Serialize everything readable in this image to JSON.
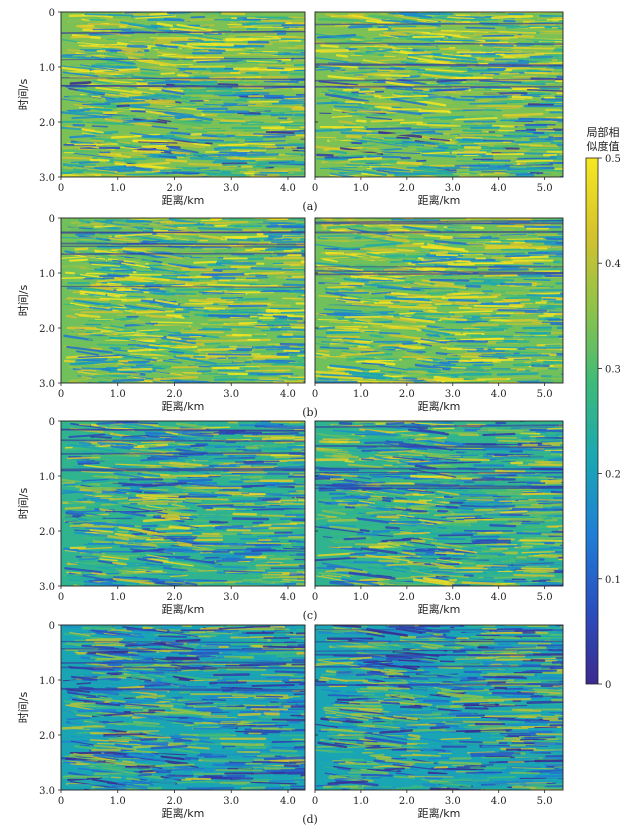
{
  "figure": {
    "colormap": [
      "#3b2a8f",
      "#2a4fc0",
      "#1f7fd6",
      "#1aa7b3",
      "#3dbb7a",
      "#8fc34a",
      "#d6c22d",
      "#f7e821"
    ],
    "colorbar": {
      "title_line1": "局部相",
      "title_line2": "似度值",
      "min": 0,
      "max": 0.5,
      "ticks": [
        "0.5",
        "0.4",
        "0.3",
        "0.2",
        "0.1",
        "0"
      ]
    },
    "rows": [
      {
        "caption": "(a)",
        "ylabel": "时间/s",
        "xlabel": "距离/km",
        "mean_level": 0.34,
        "panels": [
          {
            "xmax": 4.3,
            "xticks": [
              "0",
              "1.0",
              "2.0",
              "3.0",
              "4.0"
            ],
            "xtick_values": [
              0,
              1,
              2,
              3,
              4
            ]
          },
          {
            "xmax": 5.4,
            "xticks": [
              "0",
              "1.0",
              "2.0",
              "3.0",
              "4.0",
              "5.0"
            ],
            "xtick_values": [
              0,
              1,
              2,
              3,
              4,
              5
            ]
          }
        ],
        "yticks": [
          "0",
          "1.0",
          "2.0",
          "3.0"
        ]
      },
      {
        "caption": "(b)",
        "ylabel": "时间/s",
        "xlabel": "距离/km",
        "mean_level": 0.33,
        "panels": [
          {
            "xmax": 4.3,
            "xticks": [
              "0",
              "1.0",
              "2.0",
              "3.0",
              "4.0"
            ],
            "xtick_values": [
              0,
              1,
              2,
              3,
              4
            ]
          },
          {
            "xmax": 5.4,
            "xticks": [
              "0",
              "1.0",
              "2.0",
              "3.0",
              "4.0",
              "5.0"
            ],
            "xtick_values": [
              0,
              1,
              2,
              3,
              4,
              5
            ]
          }
        ],
        "yticks": [
          "0",
          "1.0",
          "2.0",
          "3.0"
        ]
      },
      {
        "caption": "(c)",
        "ylabel": "时间/s",
        "xlabel": "距离/km",
        "mean_level": 0.26,
        "panels": [
          {
            "xmax": 4.3,
            "xticks": [
              "0",
              "1.0",
              "2.0",
              "3.0",
              "4.0"
            ],
            "xtick_values": [
              0,
              1,
              2,
              3,
              4
            ]
          },
          {
            "xmax": 5.4,
            "xticks": [
              "0",
              "1.0",
              "2.0",
              "3.0",
              "4.0",
              "5.0"
            ],
            "xtick_values": [
              0,
              1,
              2,
              3,
              4,
              5
            ]
          }
        ],
        "yticks": [
          "0",
          "1.0",
          "2.0",
          "3.0"
        ]
      },
      {
        "caption": "(d)",
        "ylabel": "时间/s",
        "xlabel": "距离/km",
        "mean_level": 0.21,
        "panels": [
          {
            "xmax": 4.3,
            "xticks": [
              "0",
              "1.0",
              "2.0",
              "3.0",
              "4.0"
            ],
            "xtick_values": [
              0,
              1,
              2,
              3,
              4
            ]
          },
          {
            "xmax": 5.4,
            "xticks": [
              "0",
              "1.0",
              "2.0",
              "3.0",
              "4.0",
              "5.0"
            ],
            "xtick_values": [
              0,
              1,
              2,
              3,
              4,
              5
            ]
          }
        ],
        "yticks": [
          "0",
          "1.0",
          "2.0",
          "3.0"
        ]
      }
    ]
  }
}
